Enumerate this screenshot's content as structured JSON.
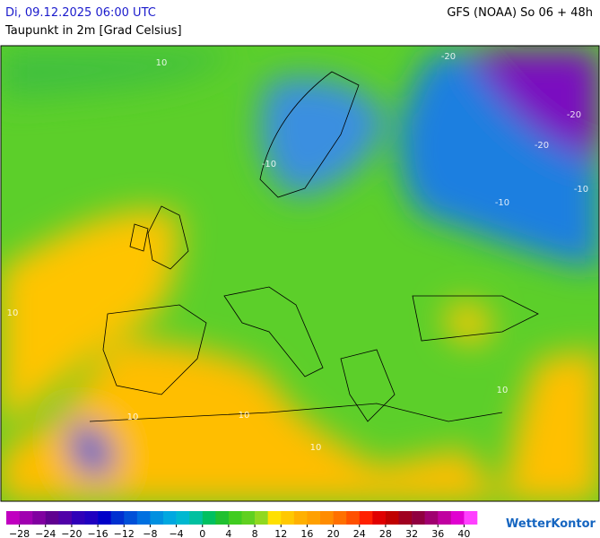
{
  "header": {
    "datetime": "Di, 09.12.2025 06:00 UTC",
    "variable": "Taupunkt in 2m [Grad Celsius]",
    "model": "GFS (NOAA) So 06 + 48h"
  },
  "map": {
    "contour_labels": [
      "10",
      "10",
      "10",
      "10",
      "-10",
      "-10",
      "-10",
      "-20",
      "-20",
      "-20",
      "10",
      "10"
    ]
  },
  "legend": {
    "range": [
      -30,
      42
    ],
    "colors": [
      "#c000c0",
      "#a000b0",
      "#8000a0",
      "#600090",
      "#5000a8",
      "#3000b8",
      "#2000c0",
      "#0000c8",
      "#0030d0",
      "#0050d8",
      "#0070e0",
      "#0090e0",
      "#00a8e0",
      "#00b8d0",
      "#00c0a0",
      "#00c060",
      "#20c030",
      "#40cc20",
      "#60d020",
      "#90d820",
      "#ffe000",
      "#ffc800",
      "#ffb000",
      "#ffa000",
      "#ff8c00",
      "#ff7000",
      "#ff5000",
      "#ff2000",
      "#e00000",
      "#c00000",
      "#a00020",
      "#900040",
      "#a00070",
      "#c000a0",
      "#e000d0",
      "#ff40ff"
    ],
    "ticks": [
      {
        "value": -28,
        "label": "−28"
      },
      {
        "value": -24,
        "label": "−24"
      },
      {
        "value": -20,
        "label": "−20"
      },
      {
        "value": -16,
        "label": "−16"
      },
      {
        "value": -12,
        "label": "−12"
      },
      {
        "value": -8,
        "label": "−8"
      },
      {
        "value": -4,
        "label": "−4"
      },
      0,
      4,
      8,
      12,
      16,
      20,
      24,
      28,
      32,
      36,
      40
    ]
  },
  "brand": "WetterKontor"
}
